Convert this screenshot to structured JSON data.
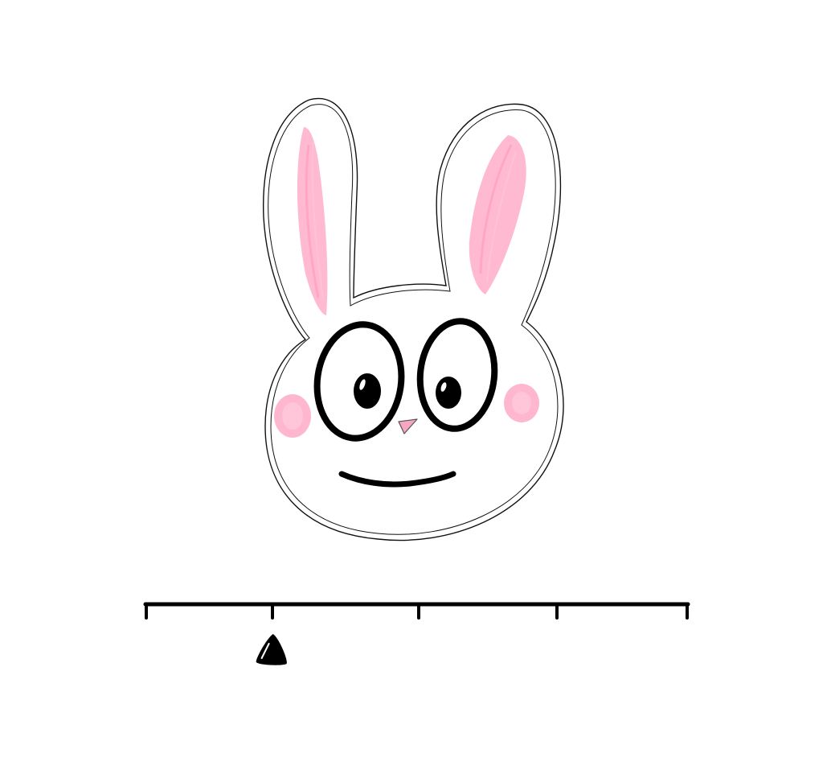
{
  "illustration": {
    "subject": "bunny-face",
    "colors": {
      "background": "#ffffff",
      "outline": "#111111",
      "ear_inner": "#ffb3cc",
      "cheek": "#ffb3cc",
      "nose": "#f5a6c0",
      "eye_fill": "#ffffff",
      "pupil": "#000000"
    }
  },
  "scale": {
    "tick_count": 5,
    "marker_position_fraction": 0.235,
    "marker_shape": "triangle",
    "colors": {
      "line": "#000000",
      "marker": "#000000"
    }
  }
}
